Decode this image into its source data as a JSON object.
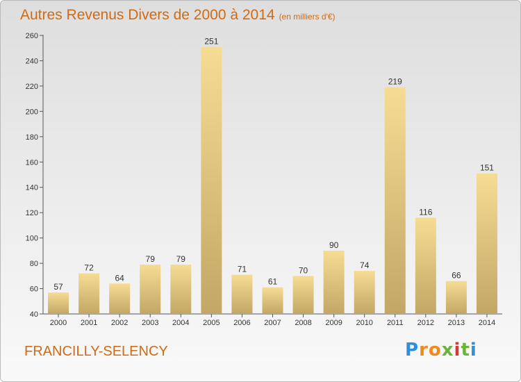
{
  "title": "Autres Revenus Divers de 2000 à 2014",
  "unit": "(en milliers d'€)",
  "commune": "FRANCILLY-SELENCY",
  "logo": {
    "letters": [
      "P",
      "r",
      "o",
      "x",
      "i",
      "t",
      "i"
    ],
    "colors": [
      "#2f8fd8",
      "#f08a1c",
      "#f08a1c",
      "#6cb33e",
      "#d23a3a",
      "#6cb33e",
      "#2f8fd8"
    ]
  },
  "chart_data": {
    "type": "bar",
    "title": "Autres Revenus Divers de 2000 à 2014",
    "categories": [
      "2000",
      "2001",
      "2002",
      "2003",
      "2004",
      "2005",
      "2006",
      "2007",
      "2008",
      "2009",
      "2010",
      "2011",
      "2012",
      "2013",
      "2014"
    ],
    "values": [
      57,
      72,
      64,
      79,
      79,
      251,
      71,
      61,
      70,
      90,
      74,
      219,
      116,
      66,
      151
    ],
    "ylim": [
      40,
      260
    ],
    "yticks": [
      40,
      60,
      80,
      100,
      120,
      140,
      160,
      180,
      200,
      220,
      240,
      260
    ],
    "grid": false,
    "legend": "none",
    "bar_color_top": "#f6dc93",
    "bar_color_bottom": "#c2a766"
  }
}
